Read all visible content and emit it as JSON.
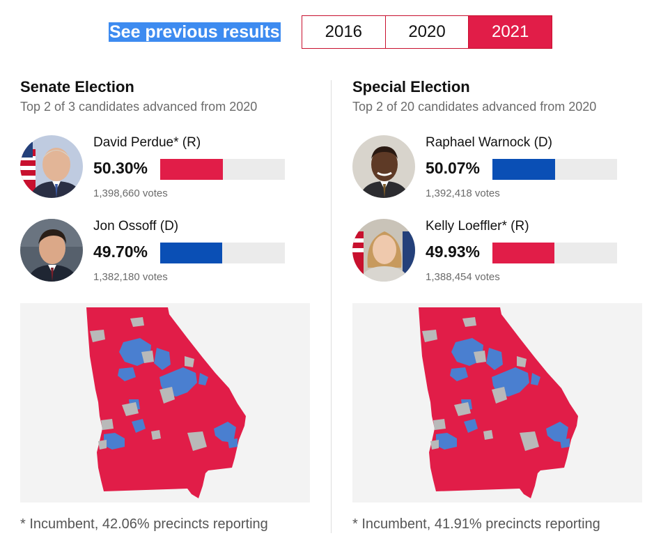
{
  "header": {
    "see_previous_label": "See previous results",
    "years": [
      {
        "label": "2016",
        "active": false
      },
      {
        "label": "2020",
        "active": false
      },
      {
        "label": "2021",
        "active": true
      }
    ]
  },
  "colors": {
    "republican": "#e11d48",
    "democrat": "#0a4fb5",
    "map_democrat": "#4a7fd0",
    "no_results": "#b9b9b9",
    "bar_track": "#ebebeb"
  },
  "races": [
    {
      "title": "Senate Election",
      "subtitle": "Top 2 of 3 candidates advanced from 2020",
      "candidates": [
        {
          "name": "David Perdue* (R)",
          "percent_label": "50.30%",
          "percent": 50.3,
          "party": "R",
          "votes_label": "1,398,660 votes",
          "photo_icon": "candidate-photo"
        },
        {
          "name": "Jon Ossoff (D)",
          "percent_label": "49.70%",
          "percent": 49.7,
          "party": "D",
          "votes_label": "1,382,180 votes",
          "photo_icon": "candidate-photo"
        }
      ],
      "footnote": "* Incumbent, 42.06% precincts reporting"
    },
    {
      "title": "Special Election",
      "subtitle": "Top 2 of 20 candidates advanced from 2020",
      "candidates": [
        {
          "name": "Raphael Warnock (D)",
          "percent_label": "50.07%",
          "percent": 50.07,
          "party": "D",
          "votes_label": "1,392,418 votes",
          "photo_icon": "candidate-photo"
        },
        {
          "name": "Kelly Loeffler* (R)",
          "percent_label": "49.93%",
          "percent": 49.93,
          "party": "R",
          "votes_label": "1,388,454 votes",
          "photo_icon": "candidate-photo"
        }
      ],
      "footnote": "* Incumbent, 41.91% precincts reporting"
    }
  ]
}
